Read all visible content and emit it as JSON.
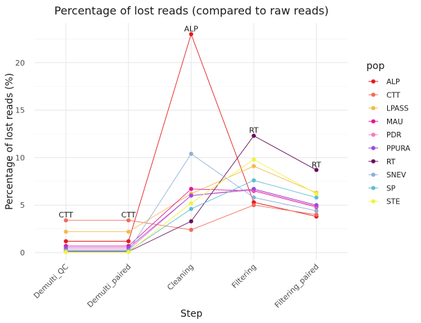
{
  "chart_data": {
    "type": "line",
    "title": "Percentage of lost reads (compared to raw reads)",
    "xlabel": "Step",
    "ylabel": "Percentage of lost reads (%)",
    "categories": [
      "Demulti_QC",
      "Demulti_paired",
      "Cleaning",
      "Filtering",
      "Filtering_paired"
    ],
    "ylim": [
      -0.8,
      24.2
    ],
    "yticks": [
      0,
      5,
      10,
      15,
      20
    ],
    "grid": true,
    "legend": {
      "title": "pop",
      "position": "right"
    },
    "series": [
      {
        "name": "ALP",
        "color": "#E41A1C",
        "values": [
          1.2,
          1.2,
          23.0,
          5.3,
          3.8
        ]
      },
      {
        "name": "CTT",
        "color": "#F06B5C",
        "values": [
          3.4,
          3.4,
          2.4,
          5.0,
          4.0
        ]
      },
      {
        "name": "LPASS",
        "color": "#F5B94C",
        "values": [
          2.2,
          2.2,
          6.2,
          9.1,
          6.3
        ]
      },
      {
        "name": "MAU",
        "color": "#E6149B",
        "values": [
          0.7,
          0.7,
          6.7,
          6.5,
          4.8
        ]
      },
      {
        "name": "PDR",
        "color": "#F07EBE",
        "values": [
          0.3,
          0.3,
          6.0,
          6.6,
          4.9
        ]
      },
      {
        "name": "PPURA",
        "color": "#9C4BDB",
        "values": [
          0.5,
          0.5,
          6.0,
          6.7,
          5.0
        ]
      },
      {
        "name": "RT",
        "color": "#6A0F5C",
        "values": [
          0.1,
          0.1,
          3.3,
          12.3,
          8.7
        ]
      },
      {
        "name": "SNEV",
        "color": "#8FAFD9",
        "values": [
          0.2,
          0.2,
          10.4,
          5.8,
          4.4
        ]
      },
      {
        "name": "SP",
        "color": "#60BCD4",
        "values": [
          0.15,
          0.15,
          4.6,
          7.6,
          5.8
        ]
      },
      {
        "name": "STE",
        "color": "#F2F23D",
        "values": [
          0.05,
          0.05,
          5.2,
          9.8,
          6.2
        ]
      }
    ],
    "annotations": [
      {
        "text": "CTT",
        "x": "Demulti_QC",
        "y": 3.4
      },
      {
        "text": "CTT",
        "x": "Demulti_paired",
        "y": 3.4
      },
      {
        "text": "ALP",
        "x": "Cleaning",
        "y": 23.0
      },
      {
        "text": "RT",
        "x": "Filtering",
        "y": 12.3
      },
      {
        "text": "RT",
        "x": "Filtering_paired",
        "y": 8.7
      }
    ]
  }
}
